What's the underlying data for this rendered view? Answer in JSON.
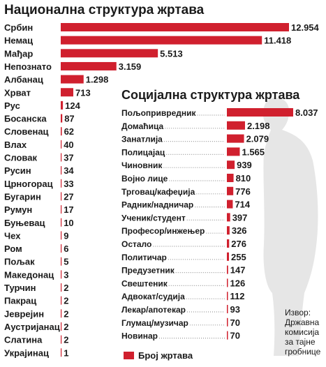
{
  "chart_data": [
    {
      "type": "bar",
      "title": "Национална структура жртава",
      "categories": [
        "Србин",
        "Немац",
        "Мађар",
        "Непознато",
        "Албанац",
        "Хрват",
        "Рус",
        "Босанска",
        "Словенац",
        "Влах",
        "Словак",
        "Русин",
        "Црногорац",
        "Бугарин",
        "Румун",
        "Буњевац",
        "Чех",
        "Ром",
        "Пољак",
        "Македонац",
        "Турчин",
        "Пакрац",
        "Јеврејин",
        "Аустријанац",
        "Слатина",
        "Украјинац"
      ],
      "values": [
        12954,
        11418,
        5513,
        3159,
        1298,
        713,
        124,
        87,
        62,
        40,
        37,
        34,
        33,
        27,
        17,
        10,
        9,
        6,
        5,
        3,
        2,
        2,
        2,
        2,
        2,
        1
      ],
      "value_labels": [
        "12.954",
        "11.418",
        "5.513",
        "3.159",
        "1.298",
        "713",
        "124",
        "87",
        "62",
        "40",
        "37",
        "34",
        "33",
        "27",
        "17",
        "10",
        "9",
        "6",
        "5",
        "3",
        "2",
        "2",
        "2",
        "2",
        "2",
        "1"
      ]
    },
    {
      "type": "bar",
      "title": "Социјална структура жртава",
      "categories": [
        "Пољопривредник",
        "Домаћица",
        "Занатлија",
        "Полицајац",
        "Чиновник",
        "Војно лице",
        "Трговац/кафеџија",
        "Радник/надничар",
        "Ученик/студент",
        "Професор/инжењер",
        "Остало",
        "Политичар",
        "Предузетник",
        "Свештеник",
        "Адвокат/судија",
        "Лекар/апотекар",
        "Глумац/музичар",
        "Новинар"
      ],
      "values": [
        8037,
        2198,
        2079,
        1565,
        939,
        810,
        776,
        714,
        397,
        326,
        276,
        255,
        147,
        126,
        112,
        93,
        70,
        70
      ],
      "value_labels": [
        "8.037",
        "2.198",
        "2.079",
        "1.565",
        "939",
        "810",
        "776",
        "714",
        "397",
        "326",
        "276",
        "255",
        "147",
        "126",
        "112",
        "93",
        "70",
        "70"
      ]
    }
  ],
  "legend": {
    "label": "Број жртава",
    "color": "#d0202e"
  },
  "source": {
    "lines": [
      "Извор:",
      "Државна",
      "комисија",
      "за тајне",
      "гробнице"
    ]
  },
  "colors": {
    "bar": "#d0202e",
    "dots": "#999999",
    "silhouette": "#e6e6e6"
  }
}
